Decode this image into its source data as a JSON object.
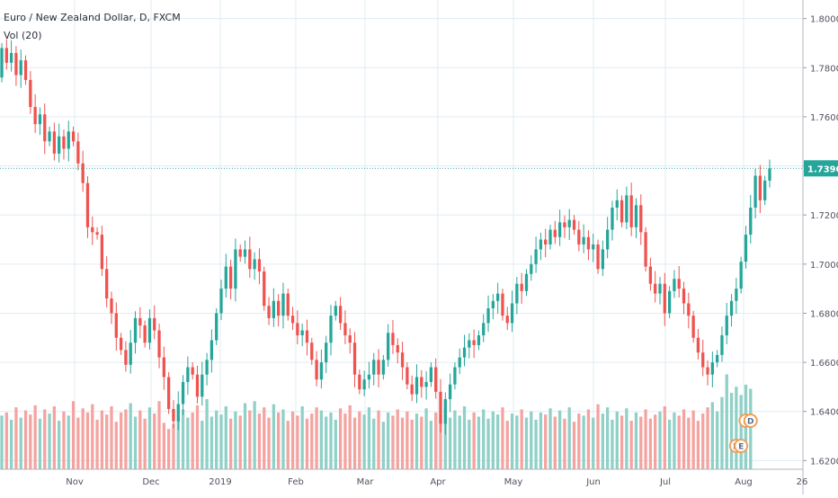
{
  "legend": {
    "symbol": "Euro / New Zealand Dollar, D, FXCM",
    "volume": "Vol (20)"
  },
  "colors": {
    "up": "#26a69a",
    "down": "#ef5350",
    "vol_up": "#8fd0c7",
    "vol_down": "#f4a3a0",
    "grid": "#e1ecf2",
    "axis_text": "#50535e",
    "price_line": "#26a69a",
    "price_label_bg": "#26a69a",
    "event_marker": "#f0a05a"
  },
  "chart_data": {
    "type": "candlestick",
    "title": "Euro / New Zealand Dollar, D, FXCM",
    "current_price": 1.739,
    "current_price_label": "1.73900",
    "y_ticks": [
      "1.80000",
      "1.78000",
      "1.76000",
      "1.74000",
      "1.72000",
      "1.70000",
      "1.68000",
      "1.66000",
      "1.64000",
      "1.62000"
    ],
    "y_range": [
      1.615,
      1.805
    ],
    "x_ticks": [
      "Nov",
      "Dec",
      "2019",
      "Feb",
      "Mar",
      "Apr",
      "May",
      "Jun",
      "Jul",
      "Aug",
      "26"
    ],
    "grid": true,
    "candles": [
      [
        1.776,
        1.788
      ],
      [
        1.788,
        1.782
      ],
      [
        1.782,
        1.786
      ],
      [
        1.786,
        1.777
      ],
      [
        1.777,
        1.783
      ],
      [
        1.783,
        1.775
      ],
      [
        1.775,
        1.764
      ],
      [
        1.764,
        1.757
      ],
      [
        1.757,
        1.761
      ],
      [
        1.761,
        1.75
      ],
      [
        1.75,
        1.754
      ],
      [
        1.754,
        1.745
      ],
      [
        1.745,
        1.752
      ],
      [
        1.752,
        1.747
      ],
      [
        1.747,
        1.754
      ],
      [
        1.754,
        1.75
      ],
      [
        1.75,
        1.741
      ],
      [
        1.741,
        1.733
      ],
      [
        1.733,
        1.715
      ],
      [
        1.715,
        1.713
      ],
      [
        1.713,
        1.712
      ],
      [
        1.712,
        1.698
      ],
      [
        1.698,
        1.686
      ],
      [
        1.686,
        1.68
      ],
      [
        1.68,
        1.67
      ],
      [
        1.67,
        1.665
      ],
      [
        1.665,
        1.659
      ],
      [
        1.659,
        1.668
      ],
      [
        1.668,
        1.678
      ],
      [
        1.678,
        1.675
      ],
      [
        1.675,
        1.668
      ],
      [
        1.668,
        1.678
      ],
      [
        1.678,
        1.673
      ],
      [
        1.673,
        1.662
      ],
      [
        1.662,
        1.654
      ],
      [
        1.654,
        1.641
      ],
      [
        1.641,
        1.636
      ],
      [
        1.636,
        1.643
      ],
      [
        1.643,
        1.652
      ],
      [
        1.652,
        1.658
      ],
      [
        1.658,
        1.655
      ],
      [
        1.655,
        1.646
      ],
      [
        1.646,
        1.655
      ],
      [
        1.655,
        1.661
      ],
      [
        1.661,
        1.669
      ],
      [
        1.669,
        1.68
      ],
      [
        1.68,
        1.69
      ],
      [
        1.69,
        1.699
      ],
      [
        1.699,
        1.69
      ],
      [
        1.69,
        1.706
      ],
      [
        1.706,
        1.703
      ],
      [
        1.703,
        1.706
      ],
      [
        1.706,
        1.698
      ],
      [
        1.698,
        1.702
      ],
      [
        1.702,
        1.697
      ],
      [
        1.697,
        1.683
      ],
      [
        1.683,
        1.678
      ],
      [
        1.678,
        1.685
      ],
      [
        1.685,
        1.679
      ],
      [
        1.679,
        1.688
      ],
      [
        1.688,
        1.679
      ],
      [
        1.679,
        1.676
      ],
      [
        1.676,
        1.671
      ],
      [
        1.671,
        1.673
      ],
      [
        1.673,
        1.668
      ],
      [
        1.668,
        1.661
      ],
      [
        1.661,
        1.653
      ],
      [
        1.653,
        1.66
      ],
      [
        1.66,
        1.668
      ],
      [
        1.668,
        1.679
      ],
      [
        1.679,
        1.683
      ],
      [
        1.683,
        1.676
      ],
      [
        1.676,
        1.671
      ],
      [
        1.671,
        1.668
      ],
      [
        1.668,
        1.655
      ],
      [
        1.655,
        1.649
      ],
      [
        1.649,
        1.653
      ],
      [
        1.653,
        1.655
      ],
      [
        1.655,
        1.661
      ],
      [
        1.661,
        1.655
      ],
      [
        1.655,
        1.661
      ],
      [
        1.661,
        1.672
      ],
      [
        1.672,
        1.667
      ],
      [
        1.667,
        1.664
      ],
      [
        1.664,
        1.658
      ],
      [
        1.658,
        1.651
      ],
      [
        1.651,
        1.647
      ],
      [
        1.647,
        1.654
      ],
      [
        1.654,
        1.65
      ],
      [
        1.65,
        1.652
      ],
      [
        1.652,
        1.658
      ],
      [
        1.658,
        1.648
      ],
      [
        1.648,
        1.635
      ],
      [
        1.635,
        1.645
      ],
      [
        1.645,
        1.651
      ],
      [
        1.651,
        1.658
      ],
      [
        1.658,
        1.662
      ],
      [
        1.662,
        1.666
      ],
      [
        1.666,
        1.669
      ],
      [
        1.669,
        1.667
      ],
      [
        1.667,
        1.671
      ],
      [
        1.671,
        1.676
      ],
      [
        1.676,
        1.682
      ],
      [
        1.682,
        1.685
      ],
      [
        1.685,
        1.688
      ],
      [
        1.688,
        1.679
      ],
      [
        1.679,
        1.676
      ],
      [
        1.676,
        1.684
      ],
      [
        1.684,
        1.692
      ],
      [
        1.692,
        1.689
      ],
      [
        1.689,
        1.696
      ],
      [
        1.696,
        1.7
      ],
      [
        1.7,
        1.706
      ],
      [
        1.706,
        1.71
      ],
      [
        1.71,
        1.708
      ],
      [
        1.708,
        1.714
      ],
      [
        1.714,
        1.711
      ],
      [
        1.711,
        1.717
      ],
      [
        1.717,
        1.715
      ],
      [
        1.715,
        1.718
      ],
      [
        1.718,
        1.714
      ],
      [
        1.714,
        1.708
      ],
      [
        1.708,
        1.711
      ],
      [
        1.711,
        1.706
      ],
      [
        1.706,
        1.708
      ],
      [
        1.708,
        1.698
      ],
      [
        1.698,
        1.706
      ],
      [
        1.706,
        1.714
      ],
      [
        1.714,
        1.723
      ],
      [
        1.723,
        1.726
      ],
      [
        1.726,
        1.717
      ],
      [
        1.717,
        1.728
      ],
      [
        1.728,
        1.715
      ],
      [
        1.715,
        1.724
      ],
      [
        1.724,
        1.713
      ],
      [
        1.713,
        1.699
      ],
      [
        1.699,
        1.692
      ],
      [
        1.692,
        1.688
      ],
      [
        1.688,
        1.692
      ],
      [
        1.692,
        1.68
      ],
      [
        1.68,
        1.689
      ],
      [
        1.689,
        1.694
      ],
      [
        1.694,
        1.69
      ],
      [
        1.69,
        1.684
      ],
      [
        1.684,
        1.679
      ],
      [
        1.679,
        1.67
      ],
      [
        1.67,
        1.664
      ],
      [
        1.664,
        1.658
      ],
      [
        1.658,
        1.655
      ],
      [
        1.655,
        1.66
      ],
      [
        1.66,
        1.663
      ],
      [
        1.663,
        1.671
      ],
      [
        1.671,
        1.679
      ],
      [
        1.679,
        1.685
      ],
      [
        1.685,
        1.69
      ],
      [
        1.69,
        1.701
      ],
      [
        1.701,
        1.712
      ],
      [
        1.712,
        1.723
      ],
      [
        1.723,
        1.736
      ],
      [
        1.736,
        1.726
      ],
      [
        1.726,
        1.734
      ],
      [
        1.734,
        1.739
      ]
    ],
    "volumes": [
      0.52,
      0.55,
      0.48,
      0.6,
      0.5,
      0.57,
      0.53,
      0.62,
      0.49,
      0.58,
      0.54,
      0.61,
      0.47,
      0.56,
      0.52,
      0.66,
      0.5,
      0.59,
      0.55,
      0.63,
      0.48,
      0.57,
      0.53,
      0.61,
      0.46,
      0.55,
      0.58,
      0.64,
      0.51,
      0.57,
      0.49,
      0.6,
      0.54,
      0.66,
      0.45,
      0.39,
      0.44,
      0.52,
      0.58,
      0.5,
      0.55,
      0.62,
      0.47,
      0.68,
      0.51,
      0.57,
      0.53,
      0.61,
      0.49,
      0.56,
      0.52,
      0.64,
      0.57,
      0.66,
      0.54,
      0.6,
      0.5,
      0.63,
      0.55,
      0.58,
      0.47,
      0.56,
      0.52,
      0.61,
      0.49,
      0.54,
      0.6,
      0.57,
      0.51,
      0.55,
      0.48,
      0.59,
      0.54,
      0.62,
      0.5,
      0.56,
      0.53,
      0.6,
      0.49,
      0.57,
      0.46,
      0.55,
      0.52,
      0.58,
      0.5,
      0.56,
      0.48,
      0.54,
      0.51,
      0.59,
      0.47,
      0.55,
      0.53,
      0.6,
      0.5,
      0.57,
      0.52,
      0.61,
      0.48,
      0.55,
      0.51,
      0.58,
      0.49,
      0.56,
      0.53,
      0.6,
      0.47,
      0.54,
      0.52,
      0.58,
      0.5,
      0.56,
      0.48,
      0.55,
      0.53,
      0.59,
      0.51,
      0.57,
      0.49,
      0.6,
      0.46,
      0.54,
      0.52,
      0.58,
      0.5,
      0.63,
      0.54,
      0.6,
      0.48,
      0.56,
      0.52,
      0.59,
      0.47,
      0.55,
      0.51,
      0.58,
      0.49,
      0.53,
      0.56,
      0.61,
      0.48,
      0.55,
      0.52,
      0.58,
      0.5,
      0.57,
      0.47,
      0.54,
      0.6,
      0.65,
      0.56,
      0.7,
      0.92,
      0.74,
      0.8,
      0.72,
      0.82,
      0.78
    ],
    "events": [
      {
        "label": "D",
        "candle": 154
      },
      {
        "label": "E",
        "candle": 155
      },
      {
        "label": "E",
        "candle": 156
      },
      {
        "label": "D",
        "candle": 157
      }
    ]
  }
}
